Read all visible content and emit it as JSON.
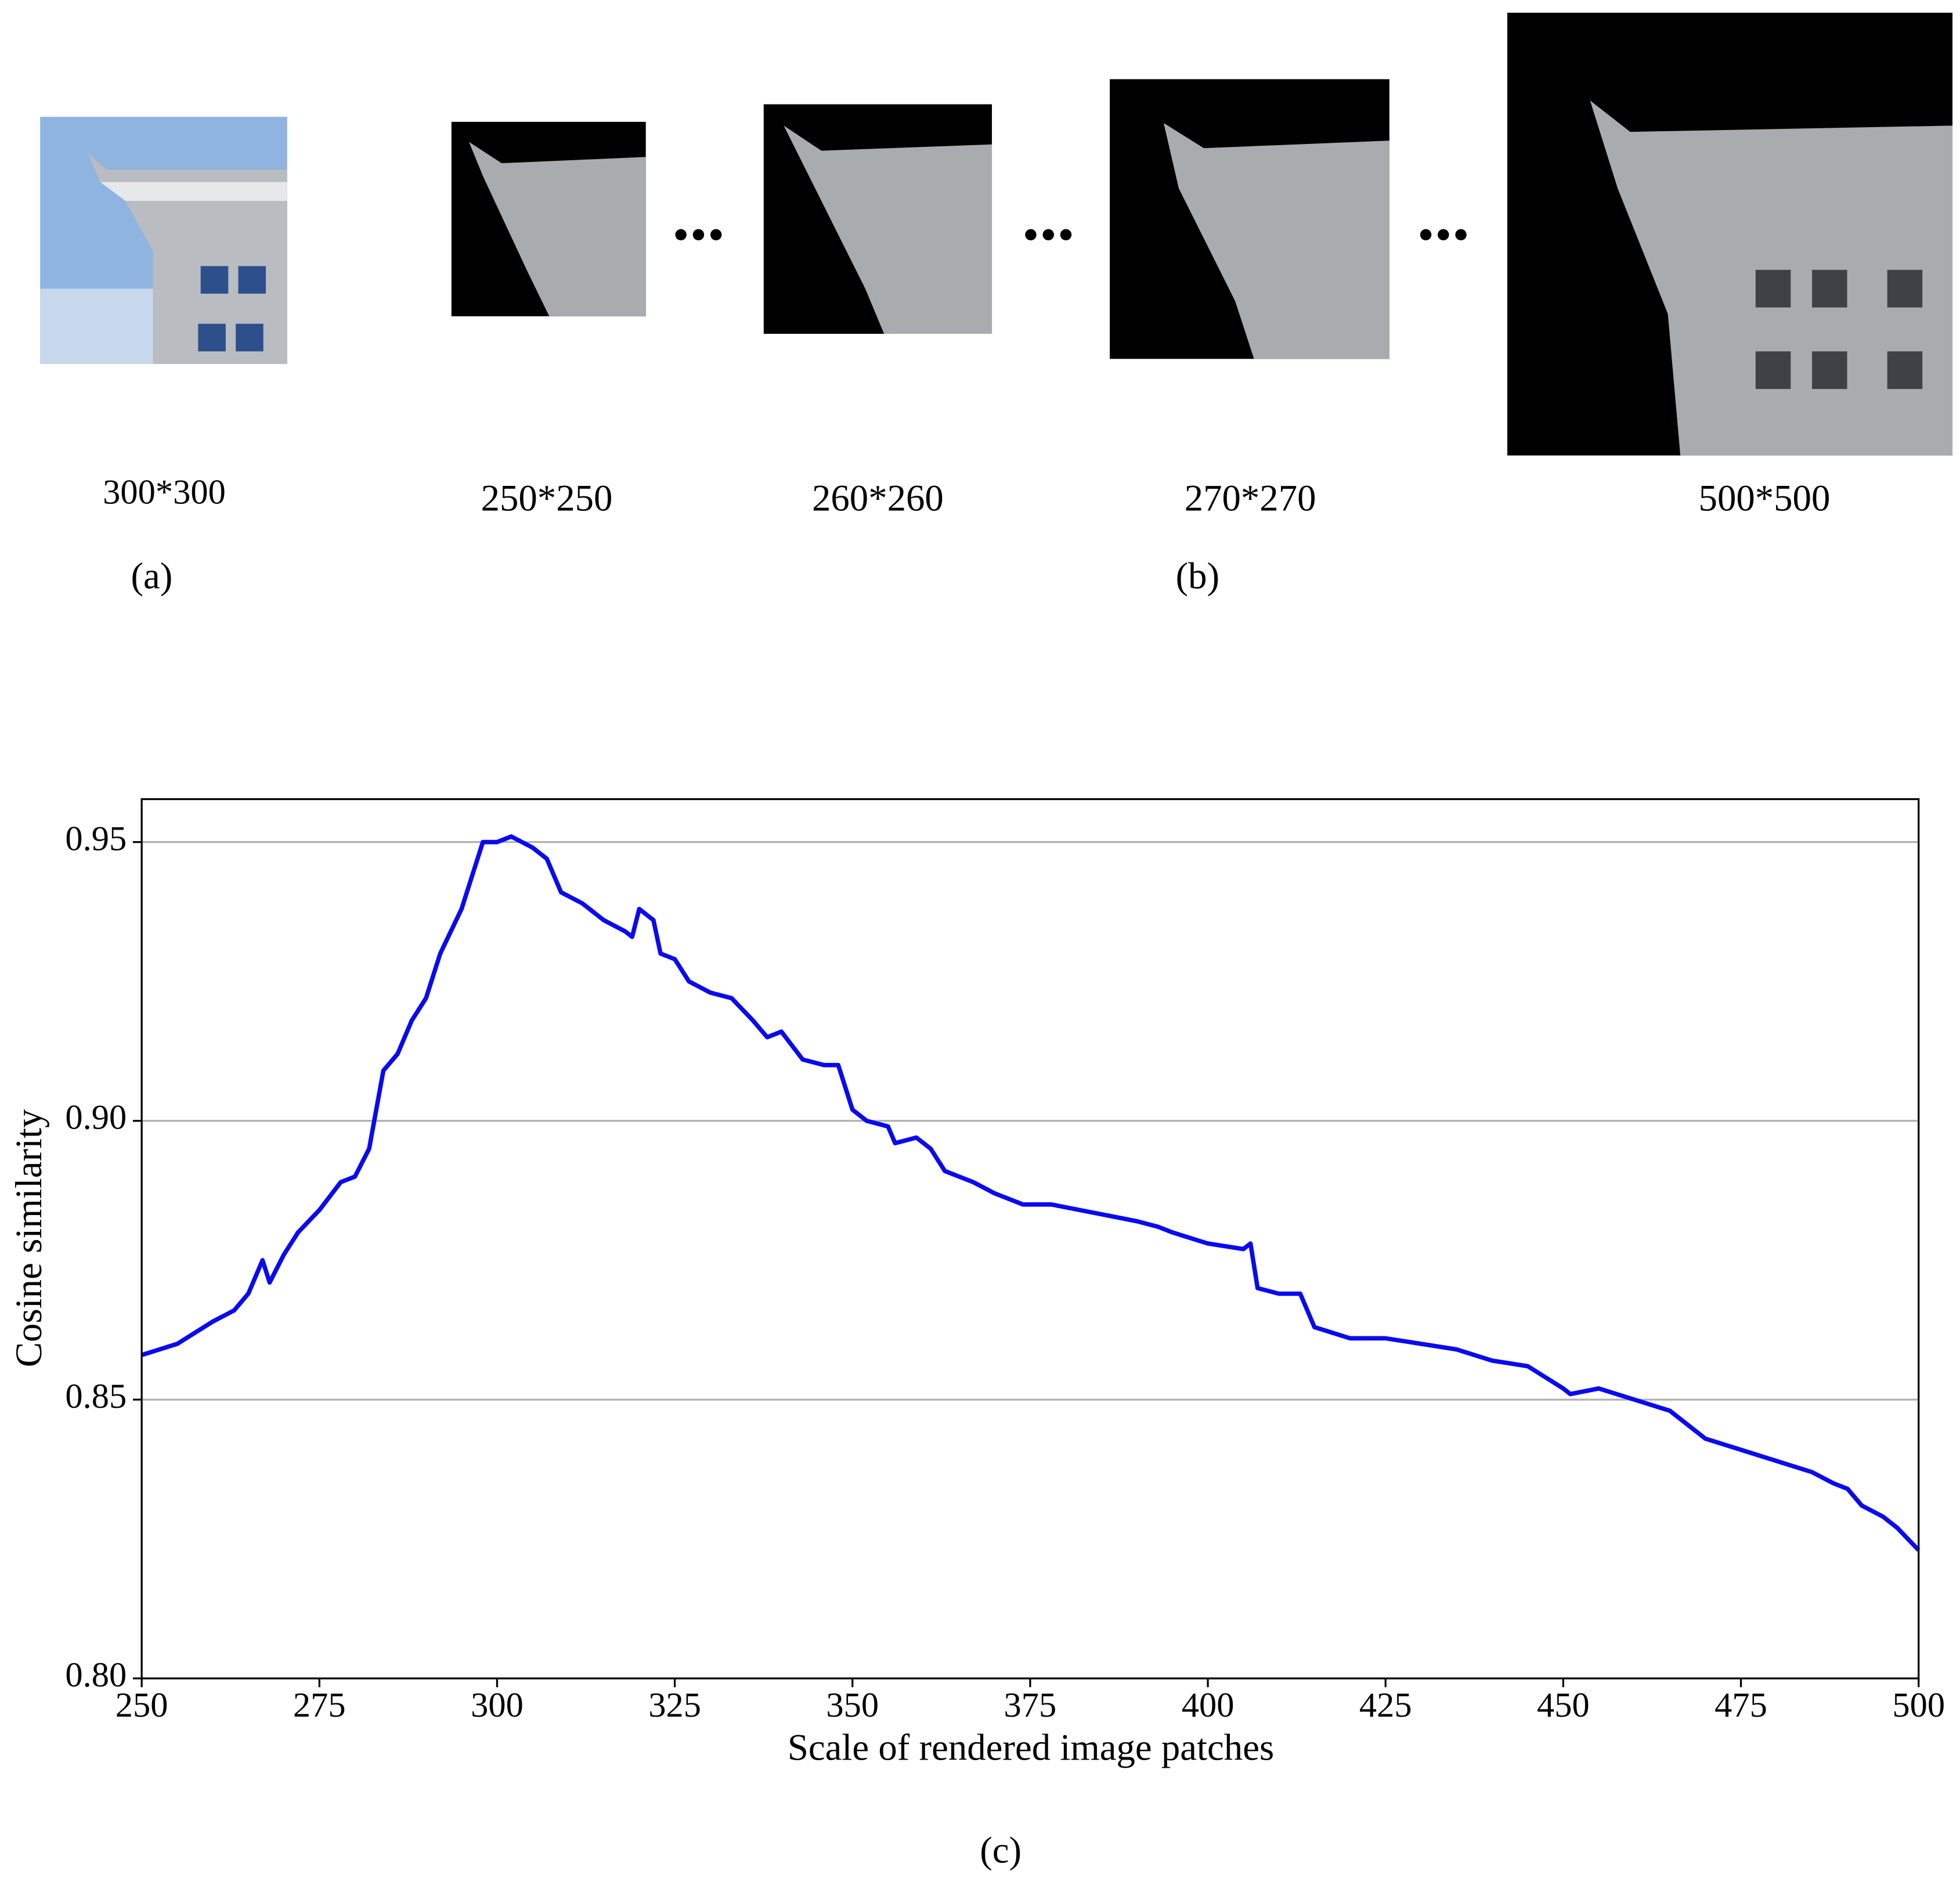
{
  "figure": {
    "panel_a": {
      "size_label": "300*300",
      "caption": "(a)"
    },
    "panel_b": {
      "size_labels": [
        "250*250",
        "260*260",
        "270*270",
        "500*500"
      ],
      "caption": "(b)"
    },
    "panel_c": {
      "caption": "(c)"
    }
  },
  "chart_data": {
    "type": "line",
    "x_label": "Scale of rendered image patches",
    "y_label": "Cosine similarity",
    "color": "#0a0af0",
    "grid": "y",
    "x": [
      250,
      255,
      260,
      263,
      265,
      267,
      268,
      270,
      272,
      275,
      278,
      280,
      282,
      284,
      286,
      288,
      290,
      292,
      295,
      298,
      300,
      302,
      305,
      307,
      309,
      312,
      315,
      318,
      319,
      320,
      322,
      323,
      325,
      327,
      330,
      333,
      336,
      338,
      340,
      343,
      346,
      348,
      350,
      352,
      355,
      356,
      359,
      361,
      363,
      367,
      370,
      374,
      378,
      382,
      386,
      390,
      393,
      395,
      400,
      405,
      406,
      407,
      410,
      413,
      415,
      420,
      425,
      430,
      435,
      440,
      445,
      450,
      451,
      455,
      460,
      465,
      467,
      470,
      475,
      480,
      485,
      488,
      490,
      492,
      495,
      497,
      500
    ],
    "values": [
      0.858,
      0.86,
      0.864,
      0.866,
      0.869,
      0.875,
      0.871,
      0.876,
      0.88,
      0.884,
      0.889,
      0.89,
      0.895,
      0.909,
      0.912,
      0.918,
      0.922,
      0.93,
      0.938,
      0.95,
      0.95,
      0.951,
      0.949,
      0.947,
      0.941,
      0.939,
      0.936,
      0.934,
      0.933,
      0.938,
      0.936,
      0.93,
      0.929,
      0.925,
      0.923,
      0.922,
      0.918,
      0.915,
      0.916,
      0.911,
      0.91,
      0.91,
      0.902,
      0.9,
      0.899,
      0.896,
      0.897,
      0.895,
      0.891,
      0.889,
      0.887,
      0.885,
      0.885,
      0.884,
      0.883,
      0.882,
      0.881,
      0.88,
      0.878,
      0.877,
      0.878,
      0.87,
      0.869,
      0.869,
      0.863,
      0.861,
      0.861,
      0.86,
      0.859,
      0.857,
      0.856,
      0.852,
      0.851,
      0.852,
      0.85,
      0.848,
      0.846,
      0.843,
      0.841,
      0.839,
      0.837,
      0.835,
      0.834,
      0.831,
      0.829,
      0.827,
      0.823
    ],
    "xlim": [
      250,
      500
    ],
    "ylim": [
      0.8,
      0.9577
    ],
    "xticks": [
      250,
      275,
      300,
      325,
      350,
      375,
      400,
      425,
      450,
      475,
      500
    ],
    "yticks": [
      {
        "value": 0.8,
        "label": "0.80"
      },
      0.85,
      {
        "value": 0.9,
        "label": "0.90"
      },
      0.95
    ]
  }
}
